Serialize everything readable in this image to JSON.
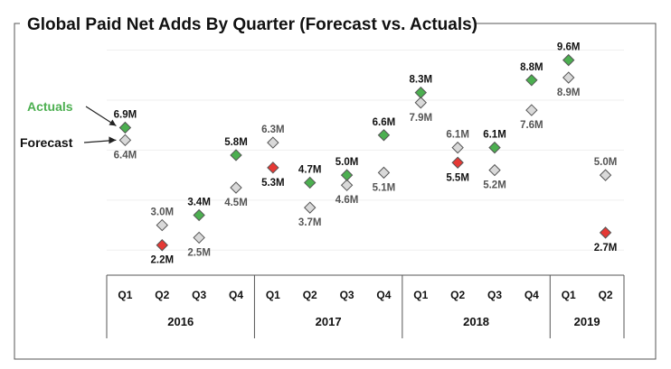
{
  "chart_data": {
    "type": "scatter",
    "title": "Global Paid Net Adds By Quarter (Forecast vs. Actuals)",
    "legend": {
      "actuals": "Actuals",
      "forecast": "Forecast",
      "position": "left"
    },
    "years": [
      {
        "label": "2016",
        "quarters": [
          "Q1",
          "Q2",
          "Q3",
          "Q4"
        ]
      },
      {
        "label": "2017",
        "quarters": [
          "Q1",
          "Q2",
          "Q3",
          "Q4"
        ]
      },
      {
        "label": "2018",
        "quarters": [
          "Q1",
          "Q2",
          "Q3",
          "Q4"
        ]
      },
      {
        "label": "2019",
        "quarters": [
          "Q1",
          "Q2"
        ]
      }
    ],
    "series": [
      {
        "name": "Actuals",
        "values": [
          6.9,
          2.2,
          3.4,
          5.8,
          5.3,
          4.7,
          5.0,
          6.6,
          8.3,
          5.5,
          6.1,
          8.8,
          9.6,
          2.7
        ],
        "labels": [
          "6.9M",
          "2.2M",
          "3.4M",
          "5.8M",
          "5.3M",
          "4.7M",
          "5.0M",
          "6.6M",
          "8.3M",
          "5.5M",
          "6.1M",
          "8.8M",
          "9.6M",
          "2.7M"
        ]
      },
      {
        "name": "Forecast",
        "values": [
          6.4,
          3.0,
          2.5,
          4.5,
          6.3,
          3.7,
          4.6,
          5.1,
          7.9,
          6.1,
          5.2,
          7.6,
          8.9,
          5.0
        ],
        "labels": [
          "6.4M",
          "3.0M",
          "2.5M",
          "4.5M",
          "6.3M",
          "3.7M",
          "4.6M",
          "5.1M",
          "7.9M",
          "6.1M",
          "5.2M",
          "7.6M",
          "8.9M",
          "5.0M"
        ]
      }
    ],
    "ylim": [
      1.0,
      10.2
    ],
    "grid": true,
    "colors": {
      "beat": "#4caf50",
      "miss": "#e53935",
      "forecast": "#d9d9d9",
      "legend_actuals": "#4caf50"
    }
  }
}
